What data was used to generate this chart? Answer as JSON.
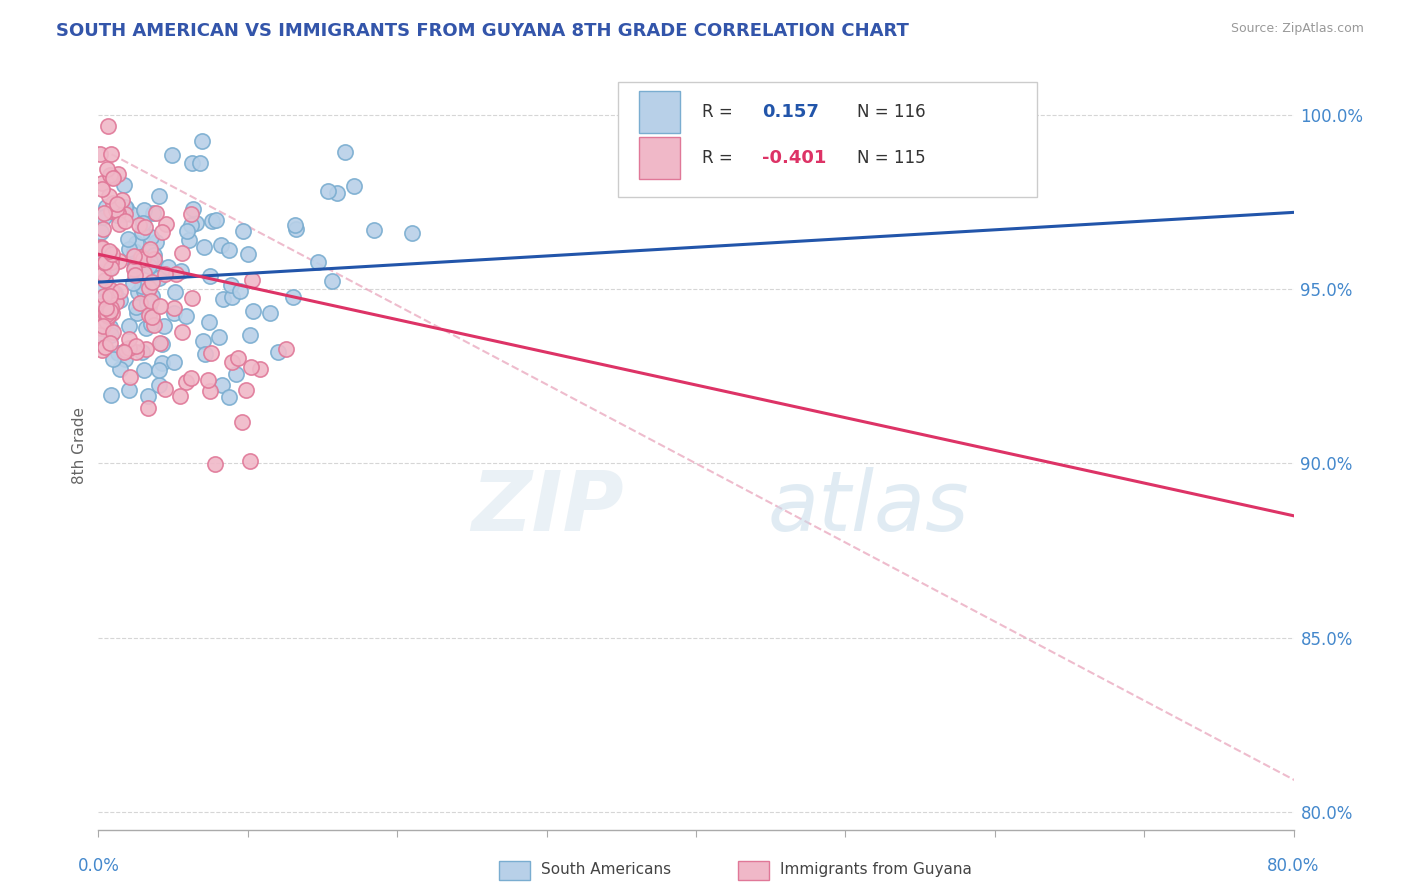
{
  "title": "SOUTH AMERICAN VS IMMIGRANTS FROM GUYANA 8TH GRADE CORRELATION CHART",
  "source": "Source: ZipAtlas.com",
  "ylabel": "8th Grade",
  "ytick_values": [
    80.0,
    85.0,
    90.0,
    95.0,
    100.0
  ],
  "ytick_labels": [
    "80.0%",
    "85.0%",
    "90.0%",
    "95.0%",
    "100.0%"
  ],
  "xlim": [
    0.0,
    80.0
  ],
  "ylim": [
    79.5,
    101.5
  ],
  "r_blue": 0.157,
  "n_blue": 116,
  "r_pink": -0.401,
  "n_pink": 115,
  "blue_fill": "#b8d0e8",
  "blue_edge": "#7aadd0",
  "pink_fill": "#f0b8c8",
  "pink_edge": "#e07898",
  "blue_line_color": "#2255aa",
  "pink_line_color": "#dd3366",
  "diag_line_color": "#e8a0b8",
  "blue_line_y0": 95.2,
  "blue_line_y1": 97.2,
  "pink_line_y0": 96.0,
  "pink_line_y1": 88.5,
  "diag_line_y0": 100.2,
  "diag_line_y1": 79.8,
  "grid_color": "#cccccc",
  "axis_color": "#aaaaaa",
  "label_color": "#4488cc",
  "title_color": "#3355aa",
  "source_color": "#999999",
  "watermark_color1": "#dde8f0",
  "watermark_color2": "#c8dcea",
  "legend_bg": "white",
  "legend_edge": "#cccccc",
  "seed_blue": 7,
  "seed_pink": 13,
  "marker_size": 120
}
